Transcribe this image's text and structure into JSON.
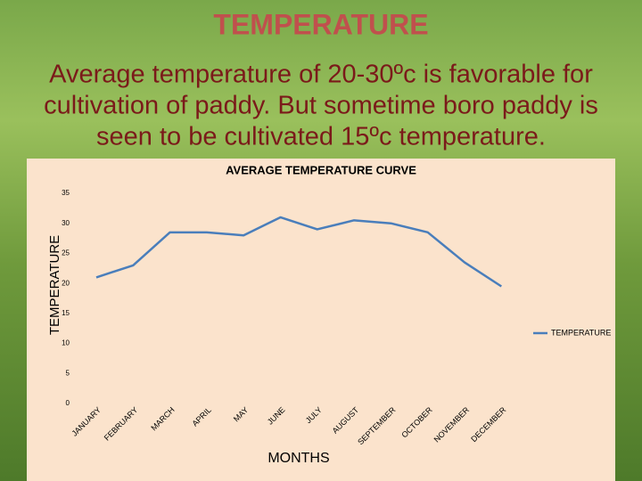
{
  "slide": {
    "title": "TEMPERATURE",
    "text_lines": [
      "Average temperature of 20-30ºc is favorable for",
      "cultivation of paddy. But sometime boro paddy is",
      "seen to be cultivated 15ºc temperature."
    ]
  },
  "chart_data": {
    "type": "line",
    "title": "AVERAGE TEMPERATURE CURVE",
    "x_label": "MONTHS",
    "y_label": "TEMPERATURE",
    "categories": [
      "JANUARY",
      "FEBRUARY",
      "MARCH",
      "APRIL",
      "MAY",
      "JUNE",
      "JULY",
      "AUGUST",
      "SEPTEMBER",
      "OCTOBER",
      "NOVEMBER",
      "DECEMBER"
    ],
    "series": [
      {
        "name": "TEMPERATURE",
        "color": "#4a7ebb",
        "values": [
          21,
          23,
          28.5,
          28.5,
          28,
          31,
          29,
          30.5,
          30,
          28.5,
          23.5,
          19.5
        ]
      }
    ],
    "ylim": [
      0,
      35
    ],
    "yticks": [
      0,
      5,
      10,
      15,
      20,
      25,
      30,
      35
    ],
    "grid": false,
    "legend": "right"
  }
}
